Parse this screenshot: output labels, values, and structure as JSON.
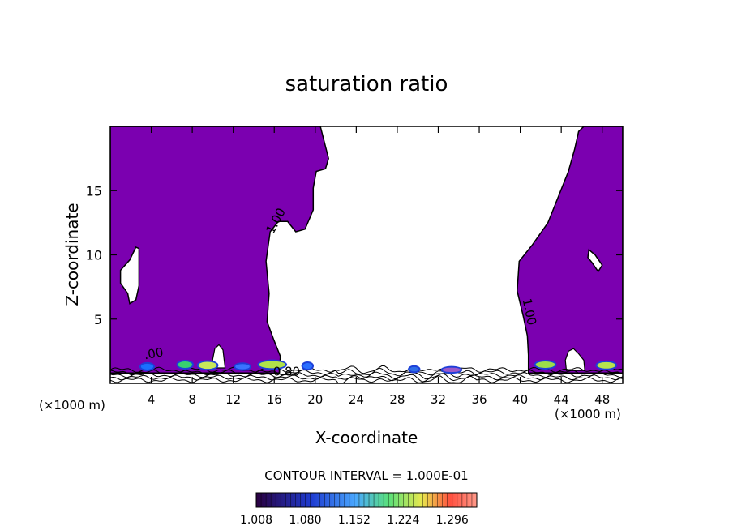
{
  "chart_data": {
    "type": "contour",
    "title": "saturation ratio",
    "xlabel": "X-coordinate",
    "ylabel": "Z-coordinate",
    "x_unit_left": "(×1000 m)",
    "x_unit_right": "(×1000 m)",
    "xlim": [
      0,
      50
    ],
    "ylim": [
      0,
      20
    ],
    "x_ticks": [
      4,
      8,
      12,
      16,
      20,
      24,
      28,
      32,
      36,
      40,
      44,
      48
    ],
    "y_ticks": [
      5,
      10,
      15
    ],
    "contour_labels": [
      {
        "text": "1.00",
        "x": 16.5,
        "y": 12.5,
        "angle": -62
      },
      {
        "text": "1.00",
        "x": 40.5,
        "y": 5.5,
        "angle": 78
      },
      {
        "text": ".00",
        "x": 4.3,
        "y": 2.0,
        "angle": -10
      },
      {
        "text": "0.80",
        "x": 17.2,
        "y": 0.6,
        "angle": 0
      }
    ],
    "contour_interval_text": "CONTOUR INTERVAL = 1.000E-01",
    "colorbar": {
      "min": 1.008,
      "max": 1.332,
      "tick_labels": [
        "1.008",
        "1.080",
        "1.152",
        "1.224",
        "1.296"
      ],
      "fill_color": "#7b00b0"
    },
    "regions": {
      "supersaturated_fill": "#7b00b0",
      "left_region": [
        [
          0,
          20
        ],
        [
          20.5,
          20
        ],
        [
          21.3,
          17.5
        ],
        [
          21,
          16.7
        ],
        [
          20.1,
          16.5
        ],
        [
          19.8,
          15.2
        ],
        [
          19.8,
          13.5
        ],
        [
          19,
          12
        ],
        [
          18.1,
          11.8
        ],
        [
          17.3,
          12.6
        ],
        [
          16.4,
          12.6
        ],
        [
          15.6,
          11.8
        ],
        [
          15.2,
          9.5
        ],
        [
          15.5,
          7
        ],
        [
          15.3,
          4.8
        ],
        [
          16,
          3.3
        ],
        [
          16.6,
          2.1
        ],
        [
          16.5,
          0.8
        ],
        [
          0,
          0.8
        ]
      ],
      "right_region": [
        [
          50,
          20
        ],
        [
          46.2,
          20
        ],
        [
          45.7,
          19.6
        ],
        [
          45.3,
          18.2
        ],
        [
          44.7,
          16.5
        ],
        [
          43.7,
          14.5
        ],
        [
          42.7,
          12.5
        ],
        [
          41.2,
          10.8
        ],
        [
          39.9,
          9.5
        ],
        [
          39.7,
          7.2
        ],
        [
          40.3,
          5.2
        ],
        [
          40.7,
          3.7
        ],
        [
          40.8,
          2.2
        ],
        [
          40.8,
          0.8
        ],
        [
          50,
          0.8
        ]
      ],
      "left_hole": [
        [
          1.9,
          6.2
        ],
        [
          1.7,
          7.0
        ],
        [
          1.0,
          7.8
        ],
        [
          1.0,
          8.8
        ],
        [
          1.9,
          9.6
        ],
        [
          2.5,
          10.6
        ],
        [
          2.8,
          10.5
        ],
        [
          2.8,
          7.6
        ],
        [
          2.5,
          6.5
        ]
      ],
      "right_hole": [
        [
          47.0,
          9.4
        ],
        [
          46.6,
          9.8
        ],
        [
          46.7,
          10.4
        ],
        [
          47.3,
          10.0
        ],
        [
          48.0,
          9.2
        ],
        [
          47.6,
          8.7
        ]
      ],
      "gap_left": [
        [
          9.9,
          1.2
        ],
        [
          10.0,
          1.9
        ],
        [
          10.2,
          2.7
        ],
        [
          10.6,
          3.0
        ],
        [
          11.0,
          2.6
        ],
        [
          11.1,
          1.9
        ],
        [
          11.2,
          1.2
        ]
      ],
      "gap_right": [
        [
          44.5,
          1.0
        ],
        [
          44.4,
          1.8
        ],
        [
          44.7,
          2.5
        ],
        [
          45.2,
          2.7
        ],
        [
          45.7,
          2.3
        ],
        [
          46.2,
          1.8
        ],
        [
          46.3,
          1.0
        ]
      ],
      "blobs": [
        {
          "x": 3.0,
          "y": 1.3,
          "w": 1.2,
          "h": 0.45,
          "color": "#1a6fff"
        },
        {
          "x": 6.6,
          "y": 1.45,
          "w": 1.4,
          "h": 0.5,
          "color": "#38d070"
        },
        {
          "x": 8.6,
          "y": 1.4,
          "w": 1.8,
          "h": 0.55,
          "color": "#c7e85a"
        },
        {
          "x": 12.2,
          "y": 1.3,
          "w": 1.4,
          "h": 0.4,
          "color": "#3a72ff"
        },
        {
          "x": 14.5,
          "y": 1.45,
          "w": 2.6,
          "h": 0.55,
          "color": "#b0e34a"
        },
        {
          "x": 18.8,
          "y": 1.35,
          "w": 0.9,
          "h": 0.45,
          "color": "#2a6fff"
        },
        {
          "x": 29.2,
          "y": 1.1,
          "w": 0.9,
          "h": 0.35,
          "color": "#2f6ee8"
        },
        {
          "x": 32.4,
          "y": 1.05,
          "w": 1.8,
          "h": 0.35,
          "color": "#9b59c9"
        },
        {
          "x": 41.5,
          "y": 1.45,
          "w": 1.9,
          "h": 0.5,
          "color": "#9be04a"
        },
        {
          "x": 47.5,
          "y": 1.4,
          "w": 1.8,
          "h": 0.5,
          "color": "#b7e44e"
        }
      ]
    }
  }
}
